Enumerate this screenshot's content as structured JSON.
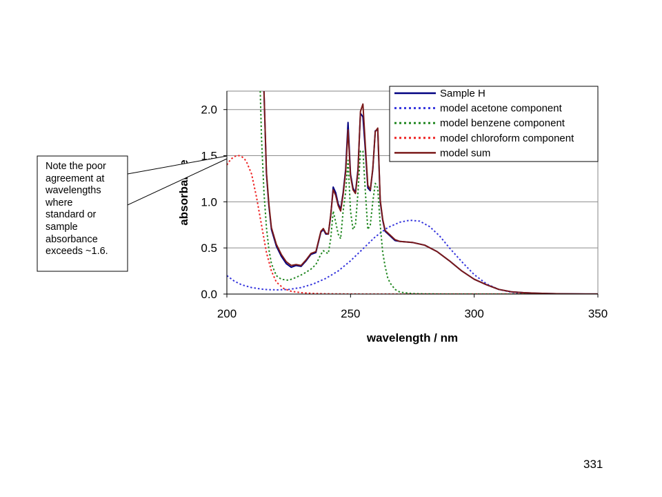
{
  "chart_data": {
    "type": "line",
    "title": "",
    "xlabel": "wavelength / nm",
    "ylabel": "absorbance",
    "xlim": [
      200,
      350
    ],
    "ylim": [
      0,
      2.2
    ],
    "xticks": [
      "200",
      "250",
      "300",
      "350"
    ],
    "yticks": [
      "0.0",
      "0.5",
      "1.0",
      "1.5",
      "2.0"
    ],
    "grid": true,
    "legend_position": "top-right",
    "series": [
      {
        "name": "Sample H",
        "color": "#000080",
        "style": "solid",
        "x": [
          215,
          216,
          217,
          218,
          220,
          222,
          224,
          226,
          228,
          230,
          232,
          234,
          236,
          238,
          239,
          240,
          241,
          242,
          243,
          244,
          245,
          246,
          247,
          248,
          249,
          250,
          251,
          252,
          253,
          254,
          255,
          256,
          257,
          258,
          259,
          260,
          261,
          262,
          263,
          264,
          266,
          268,
          270,
          275,
          280,
          285,
          290,
          295,
          300,
          305,
          310,
          315,
          320,
          325,
          330,
          335,
          340,
          345,
          350
        ],
        "y": [
          2.2,
          1.3,
          0.95,
          0.7,
          0.52,
          0.41,
          0.33,
          0.29,
          0.31,
          0.3,
          0.36,
          0.43,
          0.45,
          0.67,
          0.7,
          0.65,
          0.65,
          0.85,
          1.16,
          1.1,
          0.98,
          0.92,
          1.1,
          1.35,
          1.86,
          1.3,
          1.15,
          1.1,
          1.35,
          1.96,
          1.92,
          1.55,
          1.15,
          1.12,
          1.35,
          1.77,
          1.78,
          1.0,
          0.8,
          0.68,
          0.63,
          0.58,
          0.57,
          0.56,
          0.53,
          0.46,
          0.36,
          0.25,
          0.16,
          0.1,
          0.05,
          0.025,
          0.015,
          0.01,
          0.005,
          0.003,
          0.002,
          0.001,
          0.001
        ]
      },
      {
        "name": "model acetone component",
        "color": "#3333dd",
        "style": "dotted",
        "x": [
          200,
          203,
          206,
          210,
          215,
          220,
          225,
          230,
          235,
          240,
          245,
          250,
          255,
          260,
          265,
          270,
          274,
          278,
          282,
          286,
          290,
          295,
          300,
          305,
          310,
          315,
          320,
          325,
          330,
          340,
          350
        ],
        "y": [
          0.2,
          0.14,
          0.1,
          0.07,
          0.05,
          0.045,
          0.05,
          0.07,
          0.11,
          0.17,
          0.25,
          0.36,
          0.49,
          0.62,
          0.72,
          0.78,
          0.8,
          0.79,
          0.73,
          0.63,
          0.5,
          0.35,
          0.21,
          0.11,
          0.05,
          0.02,
          0.008,
          0.003,
          0.001,
          0.0,
          0.0
        ]
      },
      {
        "name": "model benzene component",
        "color": "#228822",
        "style": "dotted",
        "x": [
          213.5,
          214,
          215,
          216,
          217,
          218,
          220,
          222,
          225,
          228,
          231,
          234,
          236,
          238,
          239,
          240,
          241,
          242,
          243,
          244,
          245,
          246,
          247,
          248,
          249,
          250,
          251,
          252,
          253,
          254,
          255,
          256,
          257,
          258,
          259,
          260,
          261,
          262,
          263,
          264,
          265,
          266,
          268,
          270,
          275,
          280,
          290,
          300,
          350
        ],
        "y": [
          2.2,
          1.7,
          1.1,
          0.72,
          0.48,
          0.33,
          0.2,
          0.16,
          0.15,
          0.18,
          0.22,
          0.27,
          0.32,
          0.43,
          0.47,
          0.45,
          0.44,
          0.6,
          0.9,
          0.78,
          0.65,
          0.6,
          0.9,
          1.1,
          1.45,
          0.9,
          0.7,
          0.75,
          1.1,
          1.55,
          1.55,
          1.1,
          0.7,
          0.75,
          1.0,
          1.2,
          1.15,
          0.75,
          0.45,
          0.3,
          0.18,
          0.12,
          0.05,
          0.02,
          0.005,
          0.002,
          0.0,
          0.0,
          0.0
        ]
      },
      {
        "name": "model chloroform component",
        "color": "#ee2222",
        "style": "dotted",
        "x": [
          200,
          201,
          202,
          203,
          204,
          205,
          206,
          207,
          208,
          210,
          212,
          214,
          216,
          218,
          220,
          223,
          226,
          230,
          235,
          240,
          250,
          260,
          300,
          350
        ],
        "y": [
          1.4,
          1.44,
          1.47,
          1.49,
          1.5,
          1.5,
          1.49,
          1.47,
          1.43,
          1.3,
          1.05,
          0.75,
          0.45,
          0.25,
          0.13,
          0.06,
          0.03,
          0.015,
          0.007,
          0.003,
          0.001,
          0.0,
          0.0,
          0.0
        ]
      },
      {
        "name": "model sum",
        "color": "#7a1a1a",
        "style": "solid",
        "x": [
          215,
          216,
          217,
          218,
          220,
          222,
          224,
          226,
          228,
          230,
          232,
          234,
          236,
          238,
          239,
          240,
          241,
          242,
          243,
          244,
          245,
          246,
          247,
          248,
          249,
          250,
          251,
          252,
          253,
          254,
          255,
          256,
          257,
          258,
          259,
          260,
          261,
          262,
          263,
          264,
          266,
          268,
          270,
          275,
          280,
          285,
          290,
          295,
          300,
          305,
          310,
          315,
          320,
          325,
          330,
          335,
          340,
          345,
          350
        ],
        "y": [
          2.2,
          1.32,
          0.97,
          0.72,
          0.54,
          0.43,
          0.35,
          0.31,
          0.32,
          0.31,
          0.37,
          0.44,
          0.46,
          0.68,
          0.71,
          0.66,
          0.65,
          0.86,
          1.13,
          1.07,
          0.96,
          0.9,
          1.08,
          1.32,
          1.78,
          1.28,
          1.13,
          1.09,
          1.33,
          1.98,
          2.06,
          1.6,
          1.18,
          1.13,
          1.36,
          1.76,
          1.8,
          1.02,
          0.81,
          0.69,
          0.64,
          0.59,
          0.57,
          0.56,
          0.53,
          0.46,
          0.36,
          0.25,
          0.16,
          0.1,
          0.05,
          0.025,
          0.015,
          0.01,
          0.005,
          0.003,
          0.002,
          0.001,
          0.001
        ]
      }
    ]
  },
  "callout": {
    "lines": [
      "Note the poor",
      "agreement at",
      "wavelengths",
      "where",
      "standard or",
      "sample",
      "absorbance",
      "exceeds ~1.6."
    ]
  },
  "page_number": "331"
}
